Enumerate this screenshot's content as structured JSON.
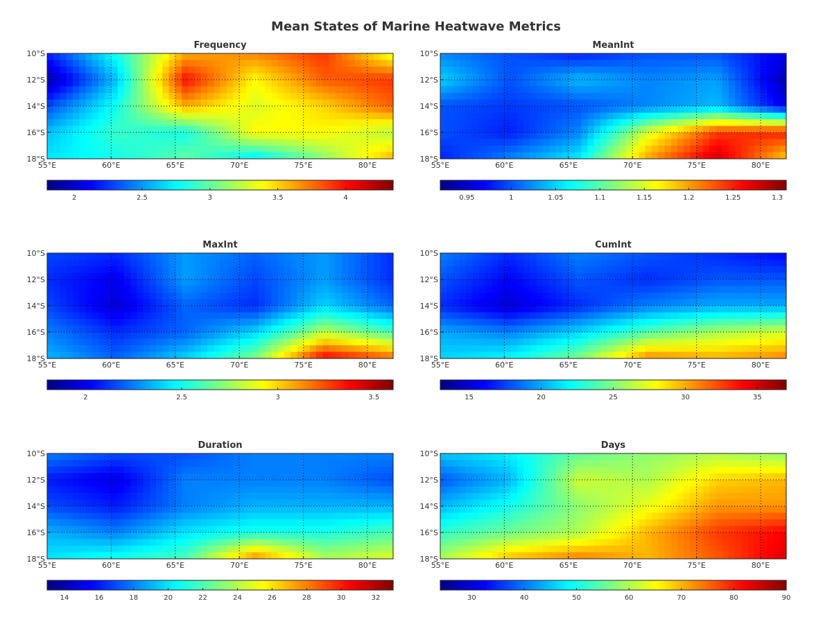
{
  "figure": {
    "title": "Mean States of Marine Heatwave Metrics"
  },
  "chart_data": [
    {
      "type": "heatmap",
      "title": "Frequency",
      "colormap": "jet",
      "xlim": [
        55,
        82
      ],
      "ylim": [
        -18,
        -10
      ],
      "xticks": [
        55,
        60,
        65,
        70,
        75,
        80
      ],
      "xtick_labels": [
        "55°E",
        "60°E",
        "65°E",
        "70°E",
        "75°E",
        "80°E"
      ],
      "yticks": [
        -10,
        -12,
        -14,
        -16,
        -18
      ],
      "ytick_labels": [
        "10°S",
        "12°S",
        "14°S",
        "16°S",
        "18°S"
      ],
      "grid": true,
      "colorbar_location": "below",
      "clim": [
        1.8,
        4.35
      ],
      "colorbar_ticks": [
        2,
        2.5,
        3,
        3.5,
        4
      ],
      "colorbar_labels": [
        "2",
        "2.5",
        "3",
        "3.5",
        "4"
      ],
      "grid_x": [
        55,
        60.4,
        65.8,
        71.2,
        76.6,
        82
      ],
      "grid_y": [
        -10,
        -12,
        -14,
        -16,
        -18
      ],
      "z": [
        [
          2.2,
          2.8,
          3.6,
          3.7,
          3.9,
          3.3
        ],
        [
          1.9,
          2.6,
          4.0,
          3.4,
          3.8,
          3.9
        ],
        [
          2.3,
          2.8,
          3.6,
          3.3,
          3.5,
          3.8
        ],
        [
          2.6,
          2.9,
          2.8,
          3.4,
          3.4,
          3.2
        ],
        [
          2.7,
          2.8,
          3.0,
          2.7,
          3.1,
          3.6
        ]
      ]
    },
    {
      "type": "heatmap",
      "title": "MeanInt",
      "colormap": "jet",
      "xlim": [
        55,
        82
      ],
      "ylim": [
        -18,
        -10
      ],
      "xticks": [
        55,
        60,
        65,
        70,
        75,
        80
      ],
      "xtick_labels": [
        "55°E",
        "60°E",
        "65°E",
        "70°E",
        "75°E",
        "80°E"
      ],
      "yticks": [
        -10,
        -12,
        -14,
        -16,
        -18
      ],
      "ytick_labels": [
        "10°S",
        "12°S",
        "14°S",
        "16°S",
        "18°S"
      ],
      "grid": true,
      "colorbar_location": "below",
      "clim": [
        0.92,
        1.31
      ],
      "colorbar_ticks": [
        0.95,
        1,
        1.05,
        1.1,
        1.15,
        1.2,
        1.25,
        1.3
      ],
      "colorbar_labels": [
        "0.95",
        "1",
        "1.05",
        "1.1",
        "1.15",
        "1.2",
        "1.25",
        "1.3"
      ],
      "grid_x": [
        55,
        60.4,
        65.8,
        71.2,
        76.6,
        82
      ],
      "grid_y": [
        -10,
        -12,
        -14,
        -16,
        -18
      ],
      "z": [
        [
          1.02,
          1.0,
          0.98,
          1.0,
          1.0,
          0.96
        ],
        [
          1.05,
          1.0,
          1.04,
          1.02,
          1.03,
          0.94
        ],
        [
          1.0,
          0.99,
          1.0,
          1.02,
          1.04,
          0.96
        ],
        [
          1.0,
          0.98,
          1.02,
          1.15,
          1.24,
          1.25
        ],
        [
          0.98,
          1.02,
          1.06,
          1.2,
          1.28,
          1.18
        ]
      ]
    },
    {
      "type": "heatmap",
      "title": "MaxInt",
      "colormap": "jet",
      "xlim": [
        55,
        82
      ],
      "ylim": [
        -18,
        -10
      ],
      "xticks": [
        55,
        60,
        65,
        70,
        75,
        80
      ],
      "xtick_labels": [
        "55°E",
        "60°E",
        "65°E",
        "70°E",
        "75°E",
        "80°E"
      ],
      "yticks": [
        -10,
        -12,
        -14,
        -16,
        -18
      ],
      "ytick_labels": [
        "10°S",
        "12°S",
        "14°S",
        "16°S",
        "18°S"
      ],
      "grid": true,
      "colorbar_location": "below",
      "clim": [
        1.8,
        3.6
      ],
      "colorbar_ticks": [
        2,
        2.5,
        3,
        3.5
      ],
      "colorbar_labels": [
        "2",
        "2.5",
        "3",
        "3.5"
      ],
      "grid_x": [
        55,
        60.4,
        65.8,
        71.2,
        76.6,
        82
      ],
      "grid_y": [
        -10,
        -12,
        -14,
        -16,
        -18
      ],
      "z": [
        [
          2.15,
          2.1,
          2.3,
          2.2,
          2.3,
          2.1
        ],
        [
          2.1,
          2.0,
          2.3,
          2.15,
          2.3,
          2.1
        ],
        [
          2.15,
          1.95,
          2.2,
          2.1,
          2.4,
          2.2
        ],
        [
          2.25,
          2.1,
          2.2,
          2.4,
          2.8,
          2.6
        ],
        [
          2.35,
          2.2,
          2.4,
          2.7,
          3.4,
          3.2
        ]
      ]
    },
    {
      "type": "heatmap",
      "title": "CumInt",
      "colormap": "jet",
      "xlim": [
        55,
        82
      ],
      "ylim": [
        -18,
        -10
      ],
      "xticks": [
        55,
        60,
        65,
        70,
        75,
        80
      ],
      "xtick_labels": [
        "55°E",
        "60°E",
        "65°E",
        "70°E",
        "75°E",
        "80°E"
      ],
      "yticks": [
        -10,
        -12,
        -14,
        -16,
        -18
      ],
      "ytick_labels": [
        "10°S",
        "12°S",
        "14°S",
        "16°S",
        "18°S"
      ],
      "grid": true,
      "colorbar_location": "below",
      "clim": [
        13,
        37
      ],
      "colorbar_ticks": [
        15,
        20,
        25,
        30,
        35
      ],
      "colorbar_labels": [
        "15",
        "20",
        "25",
        "30",
        "35"
      ],
      "grid_x": [
        55,
        60.4,
        65.8,
        71.2,
        76.6,
        82
      ],
      "grid_y": [
        -10,
        -12,
        -14,
        -16,
        -18
      ],
      "z": [
        [
          19,
          17,
          19,
          18,
          17,
          16
        ],
        [
          18,
          16,
          18,
          17,
          18,
          18
        ],
        [
          17,
          15,
          17,
          19,
          20,
          20
        ],
        [
          20,
          19,
          21,
          24,
          26,
          27
        ],
        [
          21,
          22,
          25,
          31,
          30,
          31
        ]
      ]
    },
    {
      "type": "heatmap",
      "title": "Duration",
      "colormap": "jet",
      "xlim": [
        55,
        82
      ],
      "ylim": [
        -18,
        -10
      ],
      "xticks": [
        55,
        60,
        65,
        70,
        75,
        80
      ],
      "xtick_labels": [
        "55°E",
        "60°E",
        "65°E",
        "70°E",
        "75°E",
        "80°E"
      ],
      "yticks": [
        -10,
        -12,
        -14,
        -16,
        -18
      ],
      "ytick_labels": [
        "10°S",
        "12°S",
        "14°S",
        "16°S",
        "18°S"
      ],
      "grid": true,
      "colorbar_location": "below",
      "clim": [
        13,
        33
      ],
      "colorbar_ticks": [
        14,
        16,
        18,
        20,
        22,
        24,
        26,
        28,
        30,
        32
      ],
      "colorbar_labels": [
        "14",
        "16",
        "18",
        "20",
        "22",
        "24",
        "26",
        "28",
        "30",
        "32"
      ],
      "grid_x": [
        55,
        60.4,
        65.8,
        71.2,
        76.6,
        82
      ],
      "grid_y": [
        -10,
        -12,
        -14,
        -16,
        -18
      ],
      "z": [
        [
          18,
          17,
          17,
          18,
          18,
          18
        ],
        [
          16,
          15,
          18,
          18,
          18,
          17
        ],
        [
          17,
          16,
          18,
          19,
          19,
          19
        ],
        [
          19,
          18,
          20,
          21,
          21,
          22
        ],
        [
          20,
          21,
          22,
          28,
          24,
          25
        ]
      ]
    },
    {
      "type": "heatmap",
      "title": "Days",
      "colormap": "jet",
      "xlim": [
        55,
        82
      ],
      "ylim": [
        -18,
        -10
      ],
      "xticks": [
        55,
        60,
        65,
        70,
        75,
        80
      ],
      "xtick_labels": [
        "55°E",
        "60°E",
        "65°E",
        "70°E",
        "75°E",
        "80°E"
      ],
      "yticks": [
        -10,
        -12,
        -14,
        -16,
        -18
      ],
      "ytick_labels": [
        "10°S",
        "12°S",
        "14°S",
        "16°S",
        "18°S"
      ],
      "grid": true,
      "colorbar_location": "below",
      "clim": [
        24,
        90
      ],
      "colorbar_ticks": [
        30,
        40,
        50,
        60,
        70,
        80,
        90
      ],
      "colorbar_labels": [
        "30",
        "40",
        "50",
        "60",
        "70",
        "80",
        "90"
      ],
      "grid_x": [
        55,
        60.4,
        65.8,
        71.2,
        76.6,
        82
      ],
      "grid_y": [
        -10,
        -12,
        -14,
        -16,
        -18
      ],
      "z": [
        [
          45,
          48,
          55,
          58,
          60,
          58
        ],
        [
          38,
          44,
          62,
          60,
          68,
          70
        ],
        [
          44,
          50,
          58,
          64,
          72,
          72
        ],
        [
          52,
          56,
          60,
          70,
          78,
          82
        ],
        [
          60,
          70,
          74,
          70,
          76,
          84
        ]
      ]
    }
  ]
}
